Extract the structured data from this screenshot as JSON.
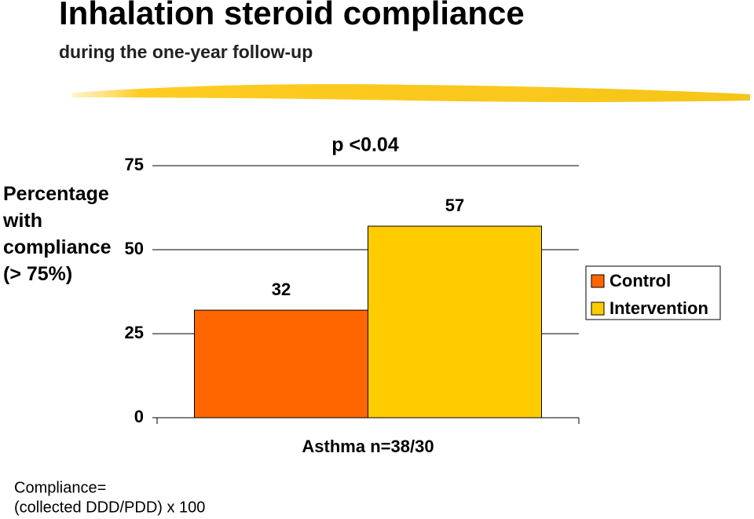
{
  "chart_data": {
    "type": "bar",
    "title": "Inhalation steroid compliance",
    "subtitle": "during the one-year follow-up",
    "ylabel": "Percentage with compliance (> 75%)",
    "annotation": "p <0.04",
    "footnote": [
      "Compliance=",
      "(collected DDD/PDD) x 100"
    ],
    "categories": [
      "Asthma n=38/30"
    ],
    "series": [
      {
        "name": "Control",
        "color": "#ff6600",
        "values": [
          32
        ]
      },
      {
        "name": "Intervention",
        "color": "#ffcc00",
        "values": [
          57
        ]
      }
    ],
    "ylim": [
      0,
      75
    ],
    "yticks": [
      0,
      25,
      50,
      75
    ],
    "grid": true,
    "legend": "right"
  }
}
